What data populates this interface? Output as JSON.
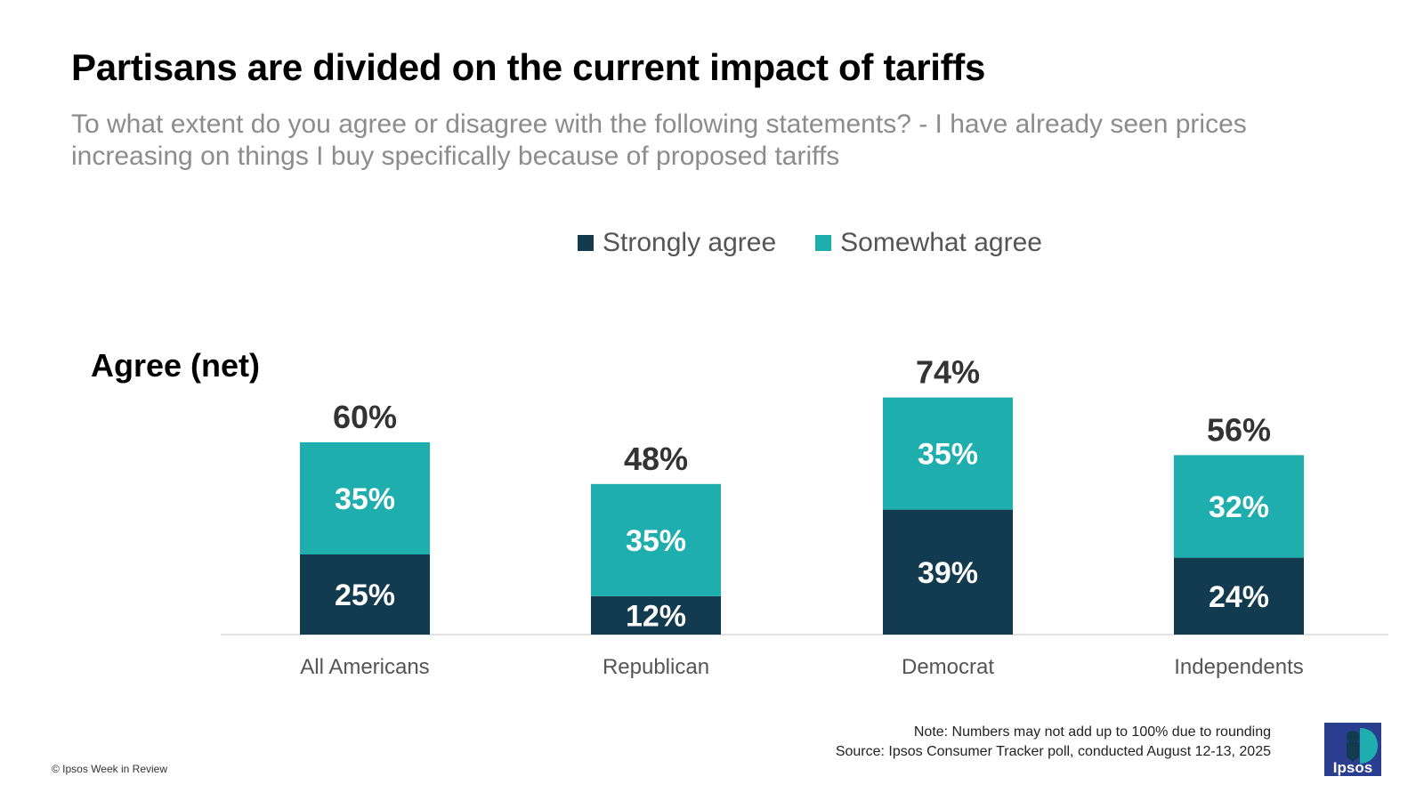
{
  "title": "Partisans are divided on the current impact of tariffs",
  "subtitle": "To what extent do you agree or disagree with the following statements? - I have already seen prices increasing on things I buy specifically because of proposed tariffs",
  "net_label": "Agree (net)",
  "colors": {
    "strongly": "#123b4f",
    "somewhat": "#1faeae",
    "baseline": "#d9d9d9",
    "total_label": "#333333",
    "category_label": "#555555"
  },
  "chart_data": {
    "type": "bar",
    "stacked": true,
    "categories": [
      "All Americans",
      "Republican",
      "Democrat",
      "Independents"
    ],
    "series": [
      {
        "name": "Strongly agree",
        "values": [
          25,
          12,
          39,
          24
        ],
        "labels": [
          "25%",
          "12%",
          "39%",
          "24%"
        ]
      },
      {
        "name": "Somewhat agree",
        "values": [
          35,
          35,
          35,
          32
        ],
        "labels": [
          "35%",
          "35%",
          "35%",
          "32%"
        ]
      }
    ],
    "totals": [
      60,
      48,
      74,
      56
    ],
    "total_labels": [
      "60%",
      "48%",
      "74%",
      "56%"
    ],
    "ylim": [
      0,
      74
    ],
    "legend": "top-center",
    "grid": false,
    "xlabel": "",
    "ylabel": ""
  },
  "footer": {
    "note": "Note: Numbers may not add up to 100% due to rounding",
    "source": "Source: Ipsos Consumer Tracker poll, conducted August 12-13, 2025",
    "copyright": "© Ipsos Week in Review",
    "logo_text": "Ipsos",
    "logo_icon": "ipsos-logo-icon"
  }
}
